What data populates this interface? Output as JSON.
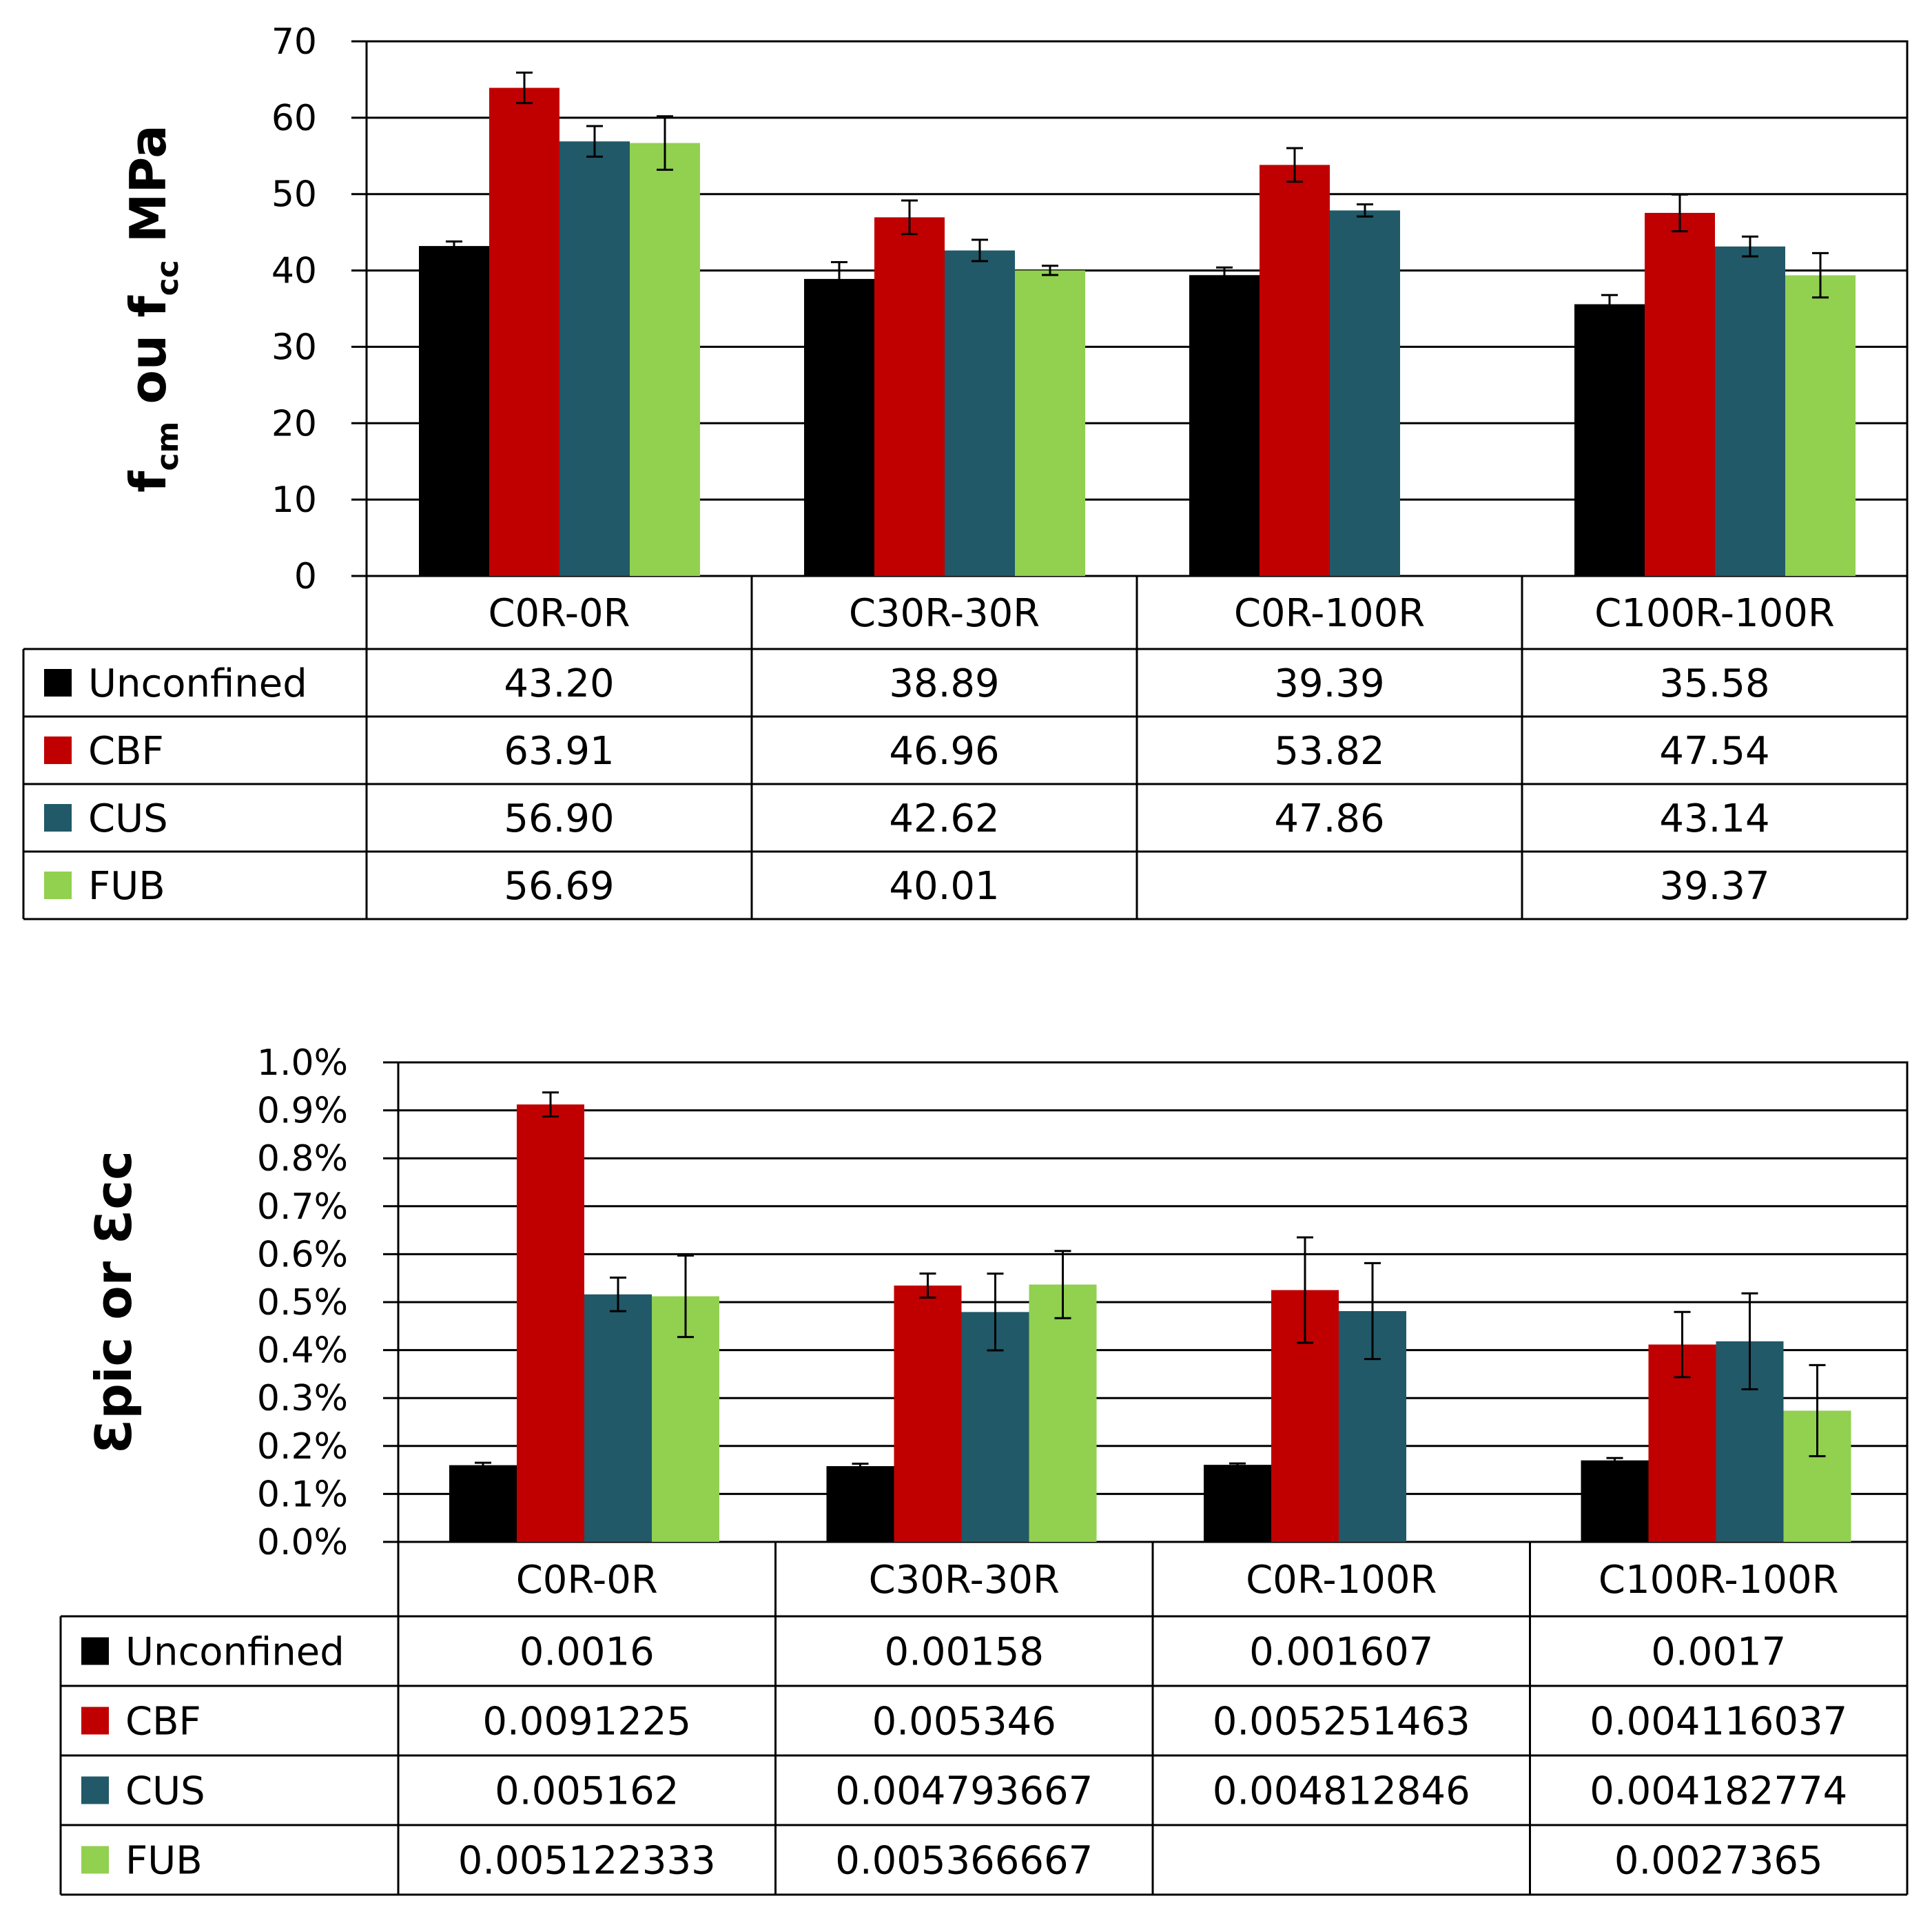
{
  "chart_data": [
    {
      "type": "bar",
      "categories": [
        "C0R-0R",
        "C30R-30R",
        "C0R-100R",
        "C100R-100R"
      ],
      "series": [
        {
          "name": "Unconfined",
          "color": "#000000",
          "values": [
            43.2,
            38.89,
            39.39,
            35.58
          ],
          "labels": [
            "43.20",
            "38.89",
            "39.39",
            "35.58"
          ],
          "errors": [
            0.6,
            2.2,
            1.0,
            1.2
          ]
        },
        {
          "name": "CBF",
          "color": "#c00000",
          "values": [
            63.91,
            46.96,
            53.82,
            47.54
          ],
          "labels": [
            "63.91",
            "46.96",
            "53.82",
            "47.54"
          ],
          "errors": [
            2.0,
            2.2,
            2.2,
            2.4
          ]
        },
        {
          "name": "CUS",
          "color": "#215968",
          "values": [
            56.9,
            42.62,
            47.86,
            43.14
          ],
          "labels": [
            "56.90",
            "42.62",
            "47.86",
            "43.14"
          ],
          "errors": [
            2.0,
            1.4,
            0.8,
            1.3
          ]
        },
        {
          "name": "FUB",
          "color": "#92d050",
          "values": [
            56.69,
            40.01,
            null,
            39.37
          ],
          "labels": [
            "56.69",
            "40.01",
            "",
            "39.37"
          ],
          "errors": [
            3.5,
            0.6,
            null,
            2.9
          ]
        }
      ],
      "ylim": [
        0,
        70
      ],
      "yticks": [
        "0",
        "10",
        "20",
        "30",
        "40",
        "50",
        "60",
        "70"
      ],
      "ylabel_parts": [
        "f",
        "cm",
        " ou f",
        "cc",
        " MPa"
      ],
      "grid": true,
      "legend": "data-table"
    },
    {
      "type": "bar",
      "categories": [
        "C0R-0R",
        "C30R-30R",
        "C0R-100R",
        "C100R-100R"
      ],
      "series": [
        {
          "name": "Unconfined",
          "color": "#000000",
          "values": [
            0.0016,
            0.00158,
            0.001607,
            0.0017
          ],
          "labels": [
            "0.0016",
            "0.00158",
            "0.001607",
            "0.0017"
          ],
          "errors": [
            5e-05,
            5e-05,
            3e-05,
            5e-05
          ]
        },
        {
          "name": "CBF",
          "color": "#c00000",
          "values": [
            0.0091225,
            0.005346,
            0.005251463,
            0.004116037
          ],
          "labels": [
            "0.0091225",
            "0.005346",
            "0.005251463",
            "0.004116037"
          ],
          "errors": [
            0.00025,
            0.00025,
            0.0011,
            0.00068
          ]
        },
        {
          "name": "CUS",
          "color": "#215968",
          "values": [
            0.005162,
            0.004793667,
            0.004812846,
            0.004182774
          ],
          "labels": [
            "0.005162",
            "0.004793667",
            "0.004812846",
            "0.004182774"
          ],
          "errors": [
            0.00035,
            0.0008,
            0.001,
            0.001
          ]
        },
        {
          "name": "FUB",
          "color": "#92d050",
          "values": [
            0.005122333,
            0.005366667,
            null,
            0.0027365
          ],
          "labels": [
            "0.005122333",
            "0.005366667",
            "",
            "0.0027365"
          ],
          "errors": [
            0.00085,
            0.0007,
            null,
            0.00095
          ]
        }
      ],
      "ylim": [
        0,
        0.01
      ],
      "yticks": [
        "0.0%",
        "0.1%",
        "0.2%",
        "0.3%",
        "0.4%",
        "0.5%",
        "0.6%",
        "0.7%",
        "0.8%",
        "0.9%",
        "1.0%"
      ],
      "ylabel": "Ɛpic or Ɛcc",
      "grid": true,
      "legend": "data-table"
    }
  ]
}
